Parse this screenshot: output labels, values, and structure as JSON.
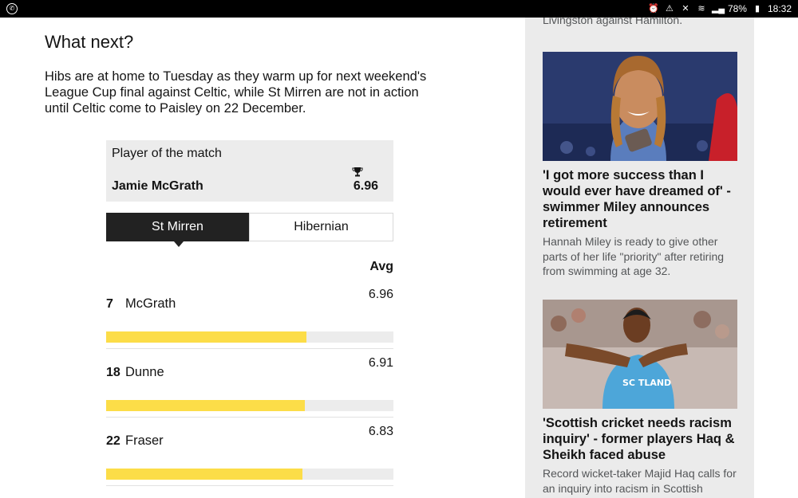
{
  "status_bar": {
    "battery": "78%",
    "time": "18:32"
  },
  "article": {
    "heading": "What next?",
    "paragraph": "Hibs are at home to Tuesday as they warm up for next weekend's League Cup final against Celtic, while St Mirren are not in action until Celtic come to Paisley on 22 December."
  },
  "player_of_match": {
    "title": "Player of the match",
    "name": "Jamie McGrath",
    "score": "6.96"
  },
  "tabs": [
    {
      "label": "St Mirren",
      "active": true
    },
    {
      "label": "Hibernian",
      "active": false
    }
  ],
  "ratings": {
    "avg_label": "Avg",
    "players": [
      {
        "number": "7",
        "name": "McGrath",
        "avg": "6.96",
        "fill": 0.697
      },
      {
        "number": "18",
        "name": "Dunne",
        "avg": "6.91",
        "fill": 0.692
      },
      {
        "number": "22",
        "name": "Fraser",
        "avg": "6.83",
        "fill": 0.684
      }
    ]
  },
  "sidebar": {
    "top_text": "Livingston against Hamilton.",
    "stories": [
      {
        "title": "'I got more success than I would ever have dreamed of' - swimmer Miley announces retirement",
        "summary": "Hannah Miley is ready to give other parts of her life \"priority\" after retiring from swimming at age 32."
      },
      {
        "title": "'Scottish cricket needs racism inquiry' - former players Haq & Sheikh faced abuse",
        "summary": "Record wicket-taker Majid Haq calls for an inquiry into racism in Scottish"
      }
    ],
    "image_text": "SC TLAND"
  },
  "colors": {
    "bar_fill": "#fcdd48",
    "bar_track": "#ececec",
    "tab_active": "#222222"
  }
}
